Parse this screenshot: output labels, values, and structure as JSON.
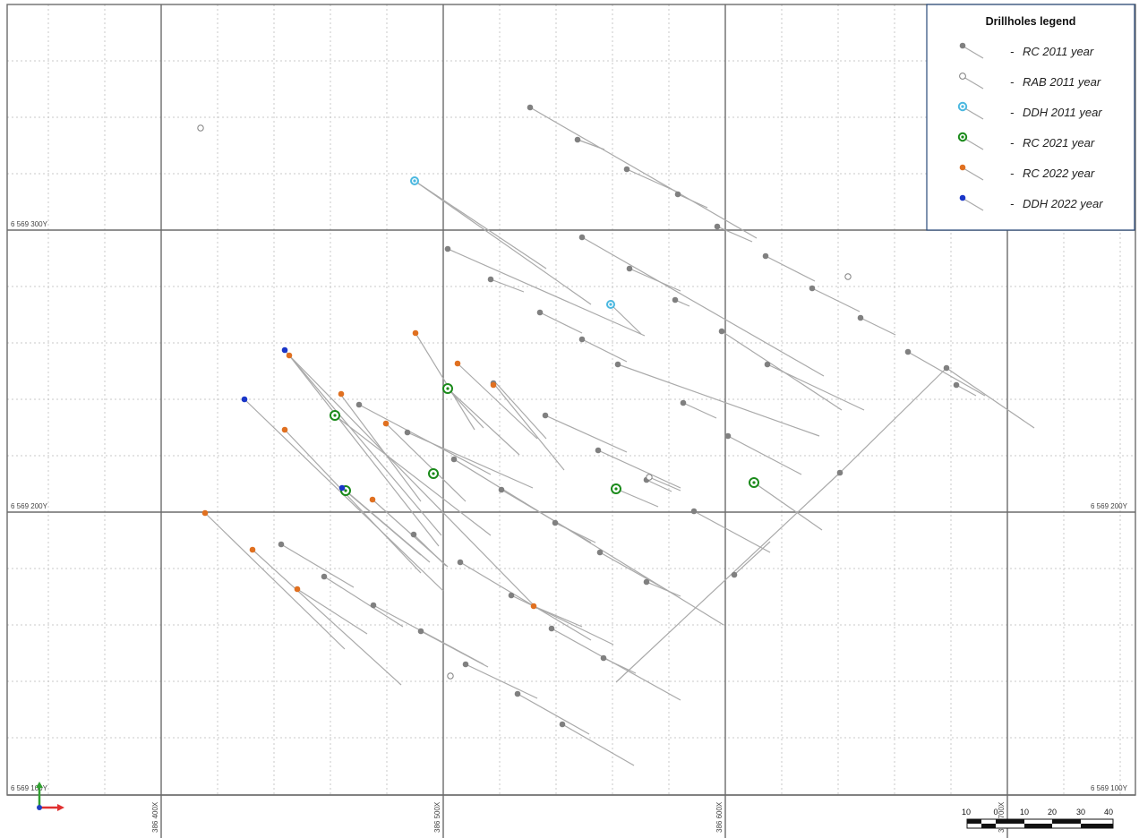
{
  "map": {
    "coordinates": {
      "northings": [
        "6 569 300Y",
        "6 569 200Y",
        "6 569 100Y"
      ],
      "eastings": [
        "386 400X",
        "386 500X",
        "386 600X",
        "386 700X"
      ]
    },
    "legend": {
      "title": "Drillholes legend",
      "items": [
        {
          "label": "RC 2011 year",
          "symbol": "filled-dot",
          "color": "#808080"
        },
        {
          "label": "RAB 2011 year",
          "symbol": "open-circle",
          "color": "#808080"
        },
        {
          "label": "DDH 2011 year",
          "symbol": "ring-dot",
          "color": "#4bb8e0"
        },
        {
          "label": "RC 2021 year",
          "symbol": "ring-dot",
          "color": "#1a8a1a"
        },
        {
          "label": "RC 2022 year",
          "symbol": "filled-dot",
          "color": "#e07020"
        },
        {
          "label": "DDH 2022 year",
          "symbol": "filled-dot",
          "color": "#1a36c8"
        }
      ]
    },
    "scale_bar": {
      "labels": [
        "10",
        "0",
        "10",
        "20",
        "30",
        "40"
      ]
    },
    "axis_indicator": {
      "x_color": "#e03030",
      "y_color": "#30a030",
      "z_color": "#2040c0"
    },
    "colors": {
      "rc2011": "#808080",
      "rab2011": "#808080",
      "ddh2011": "#4bb8e0",
      "rc2021": "#1a8a1a",
      "rc2022": "#e07020",
      "ddh2022": "#1a36c8",
      "trace": "#a9a9a9"
    }
  }
}
